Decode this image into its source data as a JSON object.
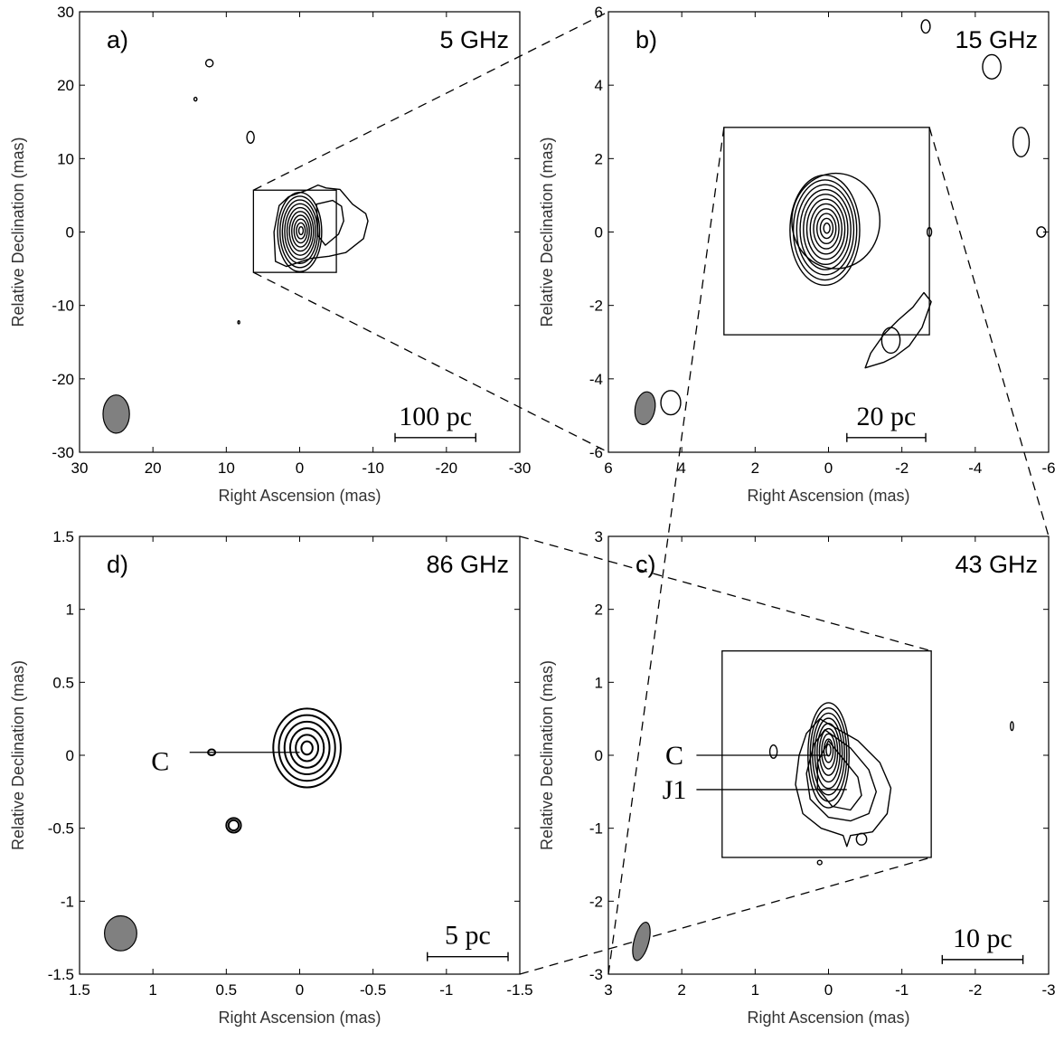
{
  "figure": {
    "xlabel": "Right Ascension (mas)",
    "ylabel": "Relative Declination (mas)",
    "colors": {
      "axes": "#000000",
      "contour": "#000000",
      "beam_fill": "#808080"
    }
  },
  "chart_data": [
    {
      "type": "contour",
      "id": "a",
      "panel_label": "a)",
      "frequency": "5 GHz",
      "xlabel": "Right Ascension (mas)",
      "ylabel": "Relative Declination (mas)",
      "xlim": [
        30,
        -30
      ],
      "ylim": [
        -30,
        30
      ],
      "xticks": [
        30,
        20,
        10,
        0,
        -10,
        -20,
        -30
      ],
      "yticks": [
        30,
        20,
        10,
        0,
        -10,
        -20,
        -30
      ],
      "scale_bar": "100 pc",
      "scale_bar_x": [
        -13,
        -24
      ],
      "scale_bar_y": -28,
      "zoom_box": {
        "x": [
          6.3,
          -5.0
        ],
        "y": [
          -5.5,
          5.7
        ]
      },
      "beam": {
        "x": 25,
        "y": -24.8,
        "major": 2.6,
        "minor": 1.8,
        "pa": 0
      },
      "contour_groups": [
        {
          "x": 0,
          "y": 0,
          "rx": 3.0,
          "ry": 5.4,
          "levels": 10,
          "shift_x": 0.2,
          "shift_y": 0.2
        }
      ],
      "blobs": [
        {
          "x": 12.3,
          "y": 23,
          "rx": 0.5,
          "ry": 0.5
        },
        {
          "x": 14.2,
          "y": 18.1,
          "rx": 0.2,
          "ry": 0.25
        },
        {
          "x": 6.7,
          "y": 12.9,
          "rx": 0.5,
          "ry": 0.8
        },
        {
          "x": 8.3,
          "y": -12.3,
          "rx": 0.1,
          "ry": 0.2
        }
      ],
      "outline_contours": [
        {
          "points": [
            [
              1.5,
              4.8
            ],
            [
              -1.0,
              5.7
            ],
            [
              -2.5,
              6.4
            ],
            [
              -3.6,
              6.0
            ],
            [
              -5.5,
              5.8
            ],
            [
              -7.2,
              3.8
            ],
            [
              -9.0,
              2.5
            ],
            [
              -9.3,
              1.5
            ],
            [
              -8.7,
              -0.9
            ],
            [
              -6.3,
              -2.8
            ],
            [
              -4.0,
              -3.3
            ],
            [
              -1.5,
              -3.6
            ],
            [
              1.8,
              -4.7
            ],
            [
              3.3,
              -4.0
            ],
            [
              3.5,
              0.0
            ],
            [
              2.8,
              3.6
            ],
            [
              1.5,
              4.8
            ]
          ]
        },
        {
          "points": [
            [
              -2.3,
              3.8
            ],
            [
              -4.5,
              4.3
            ],
            [
              -5.7,
              3.5
            ],
            [
              -6.0,
              1.5
            ],
            [
              -5.3,
              -0.3
            ],
            [
              -3.5,
              -1.8
            ],
            [
              -2.5,
              -0.5
            ],
            [
              -2.3,
              3.8
            ]
          ]
        }
      ]
    },
    {
      "type": "contour",
      "id": "b",
      "panel_label": "b)",
      "frequency": "15 GHz",
      "xlabel": "Right Ascension (mas)",
      "ylabel": "Relative Declination (mas)",
      "xlim": [
        6,
        -6
      ],
      "ylim": [
        -6,
        6
      ],
      "xticks": [
        6,
        4,
        2,
        0,
        -2,
        -4,
        -6
      ],
      "yticks": [
        6,
        4,
        2,
        0,
        -2,
        -4,
        -6
      ],
      "scale_bar": "20 pc",
      "scale_bar_x": [
        -0.5,
        -2.65
      ],
      "scale_bar_y": -5.6,
      "zoom_box": {
        "x": [
          2.85,
          -2.75
        ],
        "y": [
          -2.8,
          2.85
        ]
      },
      "beam": {
        "x": 5.0,
        "y": -4.8,
        "major": 0.45,
        "minor": 0.27,
        "pa": 10
      },
      "contour_groups": [
        {
          "x": 0.1,
          "y": 0.05,
          "rx": 0.95,
          "ry": 1.5,
          "levels": 11,
          "shift_x": 0.06,
          "shift_y": 0.06
        }
      ],
      "blobs": [
        {
          "x": -0.2,
          "y": 0.3,
          "rx": 1.2,
          "ry": 1.3
        },
        {
          "x": -2.65,
          "y": 5.6,
          "rx": 0.12,
          "ry": 0.18
        },
        {
          "x": -4.45,
          "y": 4.5,
          "rx": 0.25,
          "ry": 0.33
        },
        {
          "x": -5.25,
          "y": 2.45,
          "rx": 0.22,
          "ry": 0.4
        },
        {
          "x": -2.75,
          "y": 0.0,
          "rx": 0.06,
          "ry": 0.12
        },
        {
          "x": -5.8,
          "y": 0.0,
          "rx": 0.12,
          "ry": 0.14
        },
        {
          "x": 4.3,
          "y": -4.65,
          "rx": 0.27,
          "ry": 0.33
        },
        {
          "x": -1.7,
          "y": -2.95,
          "rx": 0.25,
          "ry": 0.35
        }
      ],
      "outline_contours": [
        {
          "points": [
            [
              -1.0,
              -3.7
            ],
            [
              -1.15,
              -3.3
            ],
            [
              -1.5,
              -2.8
            ],
            [
              -1.9,
              -2.4
            ],
            [
              -2.3,
              -2.05
            ],
            [
              -2.6,
              -1.65
            ],
            [
              -2.8,
              -1.9
            ],
            [
              -2.55,
              -2.6
            ],
            [
              -2.2,
              -3.1
            ],
            [
              -1.8,
              -3.4
            ],
            [
              -1.5,
              -3.55
            ],
            [
              -1.0,
              -3.7
            ]
          ]
        }
      ]
    },
    {
      "type": "contour",
      "id": "d",
      "panel_label": "d)",
      "frequency": "86 GHz",
      "xlabel": "Right Ascension (mas)",
      "ylabel": "Relative Declination (mas)",
      "xlim": [
        1.5,
        -1.5
      ],
      "ylim": [
        -1.5,
        1.5
      ],
      "xticks": [
        1.5,
        1,
        0.5,
        0,
        -0.5,
        -1,
        -1.5
      ],
      "yticks": [
        1.5,
        1,
        0.5,
        0,
        -0.5,
        -1,
        -1.5
      ],
      "scale_bar": "5 pc",
      "scale_bar_x": [
        -0.87,
        -1.42
      ],
      "scale_bar_y": -1.38,
      "beam": {
        "x": 1.22,
        "y": -1.22,
        "major": 0.12,
        "minor": 0.11,
        "pa": 0
      },
      "annotations": [
        {
          "text": "C",
          "label_x": 0.95,
          "label_y": -0.04,
          "line_from": [
            0.75,
            0.02
          ],
          "line_to": [
            0.0,
            0.02
          ]
        }
      ],
      "contour_groups": [
        {
          "x": -0.05,
          "y": 0.05,
          "rx": 0.23,
          "ry": 0.27,
          "levels": 6,
          "shift_x": 0.0,
          "shift_y": 0.0
        }
      ],
      "blobs": [
        {
          "x": 0.6,
          "y": 0.02,
          "rx": 0.025,
          "ry": 0.02
        },
        {
          "x": 0.45,
          "y": -0.48,
          "rx": 0.05,
          "ry": 0.05
        },
        {
          "x": 0.45,
          "y": -0.48,
          "rx": 0.035,
          "ry": 0.035
        }
      ],
      "outline_contours": []
    },
    {
      "type": "contour",
      "id": "c",
      "panel_label": "c)",
      "frequency": "43 GHz",
      "xlabel": "Right Ascension (mas)",
      "ylabel": "Relative Declination (mas)",
      "xlim": [
        3,
        -3
      ],
      "ylim": [
        -3,
        3
      ],
      "xticks": [
        3,
        2,
        1,
        0,
        -1,
        -2,
        -3
      ],
      "yticks": [
        3,
        2,
        1,
        0,
        -1,
        -2,
        -3
      ],
      "scale_bar": "10 pc",
      "scale_bar_x": [
        -1.55,
        -2.65
      ],
      "scale_bar_y": -2.8,
      "zoom_box": {
        "x": [
          1.45,
          -1.4
        ],
        "y": [
          -1.4,
          1.43
        ]
      },
      "beam": {
        "x": 2.55,
        "y": -2.55,
        "major": 0.27,
        "minor": 0.1,
        "pa": 15
      },
      "annotations": [
        {
          "text": "C",
          "label_x": 2.1,
          "label_y": 0.0,
          "line_from": [
            1.8,
            0.0
          ],
          "line_to": [
            0.0,
            0.0
          ]
        },
        {
          "text": "J1",
          "label_x": 2.1,
          "label_y": -0.47,
          "line_from": [
            1.8,
            -0.47
          ],
          "line_to": [
            -0.25,
            -0.47
          ]
        }
      ],
      "contour_groups": [
        {
          "x": 0.0,
          "y": 0.0,
          "rx": 0.28,
          "ry": 0.72,
          "levels": 9,
          "shift_x": 0.0,
          "shift_y": 0.08
        }
      ],
      "blobs": [
        {
          "x": 0.75,
          "y": 0.05,
          "rx": 0.05,
          "ry": 0.09
        },
        {
          "x": -2.5,
          "y": 0.4,
          "rx": 0.02,
          "ry": 0.06
        },
        {
          "x": -0.45,
          "y": -1.15,
          "rx": 0.07,
          "ry": 0.08
        },
        {
          "x": 0.12,
          "y": -1.47,
          "rx": 0.03,
          "ry": 0.03
        }
      ],
      "outline_contours": [
        {
          "points": [
            [
              0.12,
              0.5
            ],
            [
              -0.4,
              0.2
            ],
            [
              -0.7,
              -0.1
            ],
            [
              -0.85,
              -0.45
            ],
            [
              -0.8,
              -0.8
            ],
            [
              -0.6,
              -1.05
            ],
            [
              -0.3,
              -1.1
            ],
            [
              -0.25,
              -1.25
            ],
            [
              -0.2,
              -1.1
            ],
            [
              0.1,
              -1.0
            ],
            [
              0.35,
              -0.8
            ],
            [
              0.45,
              -0.4
            ],
            [
              0.4,
              0.0
            ],
            [
              0.3,
              0.3
            ],
            [
              0.12,
              0.5
            ]
          ]
        },
        {
          "points": [
            [
              0.05,
              0.35
            ],
            [
              -0.3,
              0.1
            ],
            [
              -0.55,
              -0.2
            ],
            [
              -0.65,
              -0.5
            ],
            [
              -0.55,
              -0.8
            ],
            [
              -0.3,
              -0.9
            ],
            [
              0.0,
              -0.85
            ],
            [
              0.25,
              -0.6
            ],
            [
              0.3,
              -0.25
            ],
            [
              0.2,
              0.15
            ],
            [
              0.05,
              0.35
            ]
          ]
        },
        {
          "points": [
            [
              0.0,
              0.2
            ],
            [
              -0.2,
              -0.05
            ],
            [
              -0.4,
              -0.3
            ],
            [
              -0.45,
              -0.55
            ],
            [
              -0.3,
              -0.75
            ],
            [
              -0.05,
              -0.7
            ],
            [
              0.15,
              -0.45
            ],
            [
              0.15,
              -0.1
            ],
            [
              0.0,
              0.2
            ]
          ]
        }
      ]
    }
  ]
}
